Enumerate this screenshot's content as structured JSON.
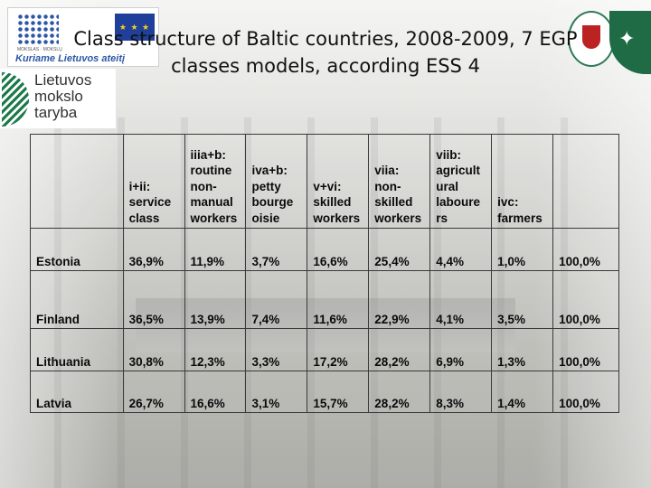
{
  "logos": {
    "esf_slogan": "Kuriame Lietuvos ateitį",
    "esf_tiny": "MOKSLAS · MOKSLŲ",
    "eu_mark": "★ ★ ★",
    "council": [
      "Lietuvos",
      "mokslo",
      "taryba"
    ],
    "right_mark": "✦"
  },
  "title": {
    "line1": "Class structure of Baltic countries, 2008-2009, 7 EGP",
    "line2": "classes models, according ESS 4"
  },
  "table": {
    "headers": [
      "",
      "i+ii: service class",
      "iiia+b: routine non-manual workers",
      "iva+b: petty bourgeoisie",
      "v+vi: skilled workers",
      "viia: non-skilled workers",
      "viib: agricultural labourers",
      "ivc: farmers",
      ""
    ],
    "header_lines": [
      [],
      [
        "i+ii:",
        "service",
        "class"
      ],
      [
        "iiia+b:",
        "routine",
        "non-",
        "manual",
        "workers"
      ],
      [
        "iva+b:",
        "petty",
        "bourge",
        "oisie"
      ],
      [
        "v+vi:",
        "skilled",
        "workers"
      ],
      [
        "viia:",
        "non-",
        "skilled",
        "workers"
      ],
      [
        "viib:",
        "agricult",
        "ural",
        "laboure",
        "rs"
      ],
      [
        "ivc:",
        "farmers"
      ],
      []
    ],
    "rows": [
      [
        "Estonia",
        "36,9%",
        "11,9%",
        "3,7%",
        "16,6%",
        "25,4%",
        "4,4%",
        "1,0%",
        "100,0%"
      ],
      [
        "Finland",
        "36,5%",
        "13,9%",
        "7,4%",
        "11,6%",
        "22,9%",
        "4,1%",
        "3,5%",
        "100,0%"
      ],
      [
        "Lithuania",
        "30,8%",
        "12,3%",
        "3,3%",
        "17,2%",
        "28,2%",
        "6,9%",
        "1,3%",
        "100,0%"
      ],
      [
        "Latvia",
        "26,7%",
        "16,6%",
        "3,1%",
        "15,7%",
        "28,2%",
        "8,3%",
        "1,4%",
        "100,0%"
      ]
    ]
  }
}
